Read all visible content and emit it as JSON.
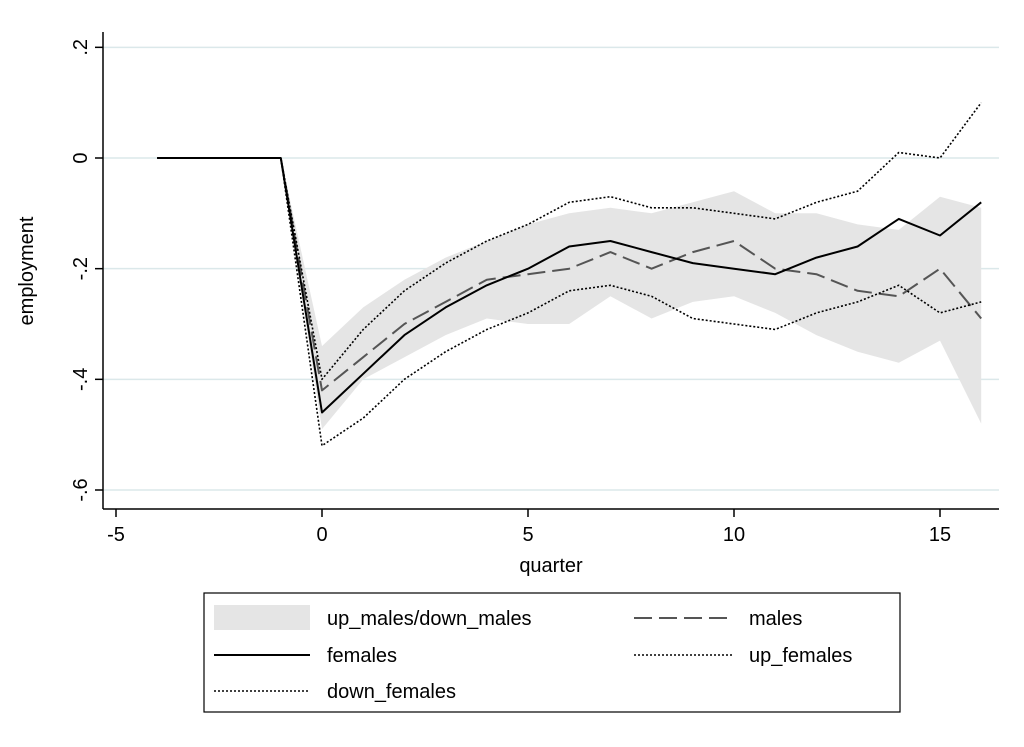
{
  "chart_data": {
    "type": "line",
    "xlabel": "quarter",
    "ylabel": "employment",
    "xlim": [
      -5,
      16.5
    ],
    "ylim": [
      -0.62,
      0.22
    ],
    "xticks": [
      -5,
      0,
      5,
      10,
      15
    ],
    "xtick_labels": [
      "-5",
      "0",
      "5",
      "10",
      "15"
    ],
    "yticks": [
      -0.6,
      -0.4,
      -0.2,
      0,
      0.2
    ],
    "ytick_labels": [
      "-.6",
      "-.4",
      "-.2",
      "0",
      ".2"
    ],
    "grid": "horizontal",
    "x": [
      -4,
      -3,
      -2,
      -1,
      0,
      1,
      2,
      3,
      4,
      5,
      6,
      7,
      8,
      9,
      10,
      11,
      12,
      13,
      14,
      15,
      16
    ],
    "band": {
      "name": "up_males/down_males",
      "color": "#e5e5e5",
      "upper": [
        0,
        0,
        0,
        0,
        -0.34,
        -0.27,
        -0.22,
        -0.18,
        -0.15,
        -0.12,
        -0.1,
        -0.09,
        -0.1,
        -0.08,
        -0.06,
        -0.1,
        -0.1,
        -0.12,
        -0.13,
        -0.07,
        -0.09
      ],
      "lower": [
        0,
        0,
        0,
        0,
        -0.49,
        -0.4,
        -0.36,
        -0.32,
        -0.29,
        -0.3,
        -0.3,
        -0.25,
        -0.29,
        -0.26,
        -0.25,
        -0.28,
        -0.32,
        -0.35,
        -0.37,
        -0.33,
        -0.48
      ]
    },
    "series": [
      {
        "name": "males",
        "style": "dashed",
        "color": "#555555",
        "values": [
          0,
          0,
          0,
          0,
          -0.42,
          -0.36,
          -0.3,
          -0.26,
          -0.22,
          -0.21,
          -0.2,
          -0.17,
          -0.2,
          -0.17,
          -0.15,
          -0.2,
          -0.21,
          -0.24,
          -0.25,
          -0.2,
          -0.29
        ]
      },
      {
        "name": "females",
        "style": "solid",
        "color": "#000000",
        "values": [
          0,
          0,
          0,
          0,
          -0.46,
          -0.39,
          -0.32,
          -0.27,
          -0.23,
          -0.2,
          -0.16,
          -0.15,
          -0.17,
          -0.19,
          -0.2,
          -0.21,
          -0.18,
          -0.16,
          -0.11,
          -0.14,
          -0.08
        ]
      },
      {
        "name": "up_females",
        "style": "dotted",
        "color": "#000000",
        "values": [
          0,
          0,
          0,
          0,
          -0.4,
          -0.31,
          -0.24,
          -0.19,
          -0.15,
          -0.12,
          -0.08,
          -0.07,
          -0.09,
          -0.09,
          -0.1,
          -0.11,
          -0.08,
          -0.06,
          0.01,
          0,
          0.1
        ]
      },
      {
        "name": "down_females",
        "style": "dotted",
        "color": "#000000",
        "values": [
          0,
          0,
          0,
          0,
          -0.52,
          -0.47,
          -0.4,
          -0.35,
          -0.31,
          -0.28,
          -0.24,
          -0.23,
          -0.25,
          -0.29,
          -0.3,
          -0.31,
          -0.28,
          -0.26,
          -0.23,
          -0.28,
          -0.26
        ]
      }
    ],
    "legend": {
      "placement": "bottom",
      "items": [
        "up_males/down_males",
        "males",
        "females",
        "up_females",
        "down_females"
      ]
    }
  }
}
